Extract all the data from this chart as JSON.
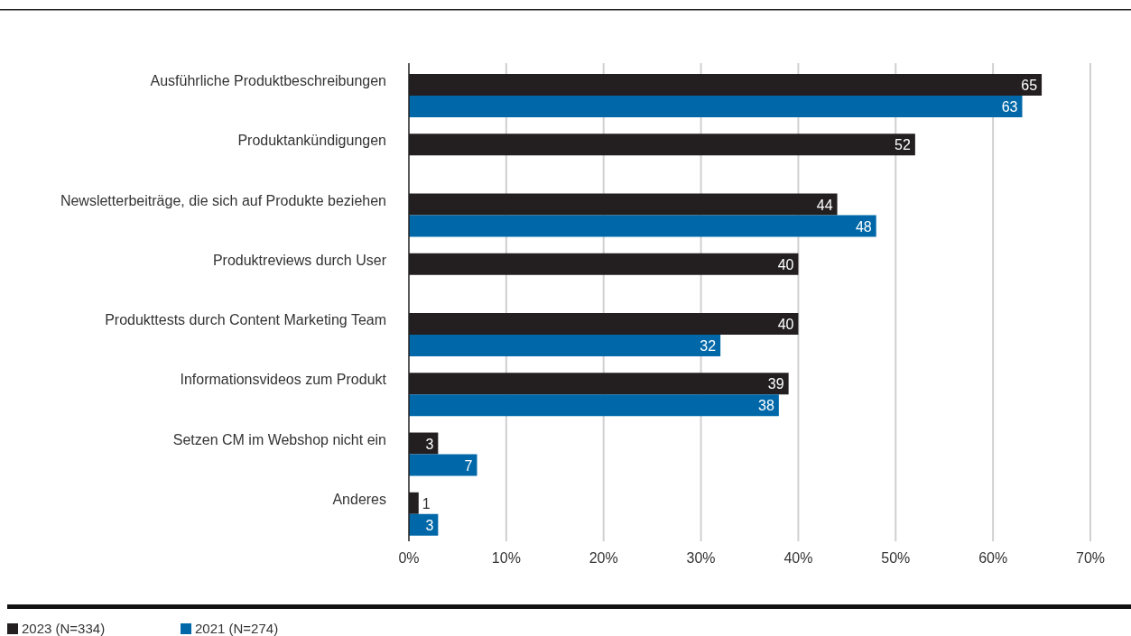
{
  "chart_data": {
    "type": "bar",
    "orientation": "horizontal",
    "categories": [
      "Ausführliche Produktbeschreibungen",
      "Produktankündigungen",
      "Newsletterbeiträge, die sich auf Produkte beziehen",
      "Produktreviews durch User",
      "Produkttests durch Content Marketing Team",
      "Informationsvideos zum Produkt",
      "Setzen CM im Webshop nicht ein",
      "Anderes"
    ],
    "series": [
      {
        "name": "2023 (N=334)",
        "color": "#231f20",
        "values": [
          65,
          52,
          44,
          40,
          40,
          39,
          3,
          1
        ]
      },
      {
        "name": "2021 (N=274)",
        "color": "#0068a8",
        "values": [
          63,
          null,
          48,
          null,
          32,
          38,
          7,
          3
        ]
      }
    ],
    "xlim": [
      0,
      70
    ],
    "xticks": [
      {
        "value": 0,
        "label": "0%"
      },
      {
        "value": 10,
        "label": "10%"
      },
      {
        "value": 20,
        "label": "20%"
      },
      {
        "value": 30,
        "label": "30%"
      },
      {
        "value": 40,
        "label": "40%"
      },
      {
        "value": 50,
        "label": "50%"
      },
      {
        "value": 60,
        "label": "60%"
      },
      {
        "value": 70,
        "label": "70%"
      }
    ],
    "grid": "x",
    "legend": "bottom left",
    "data_labels": true
  }
}
